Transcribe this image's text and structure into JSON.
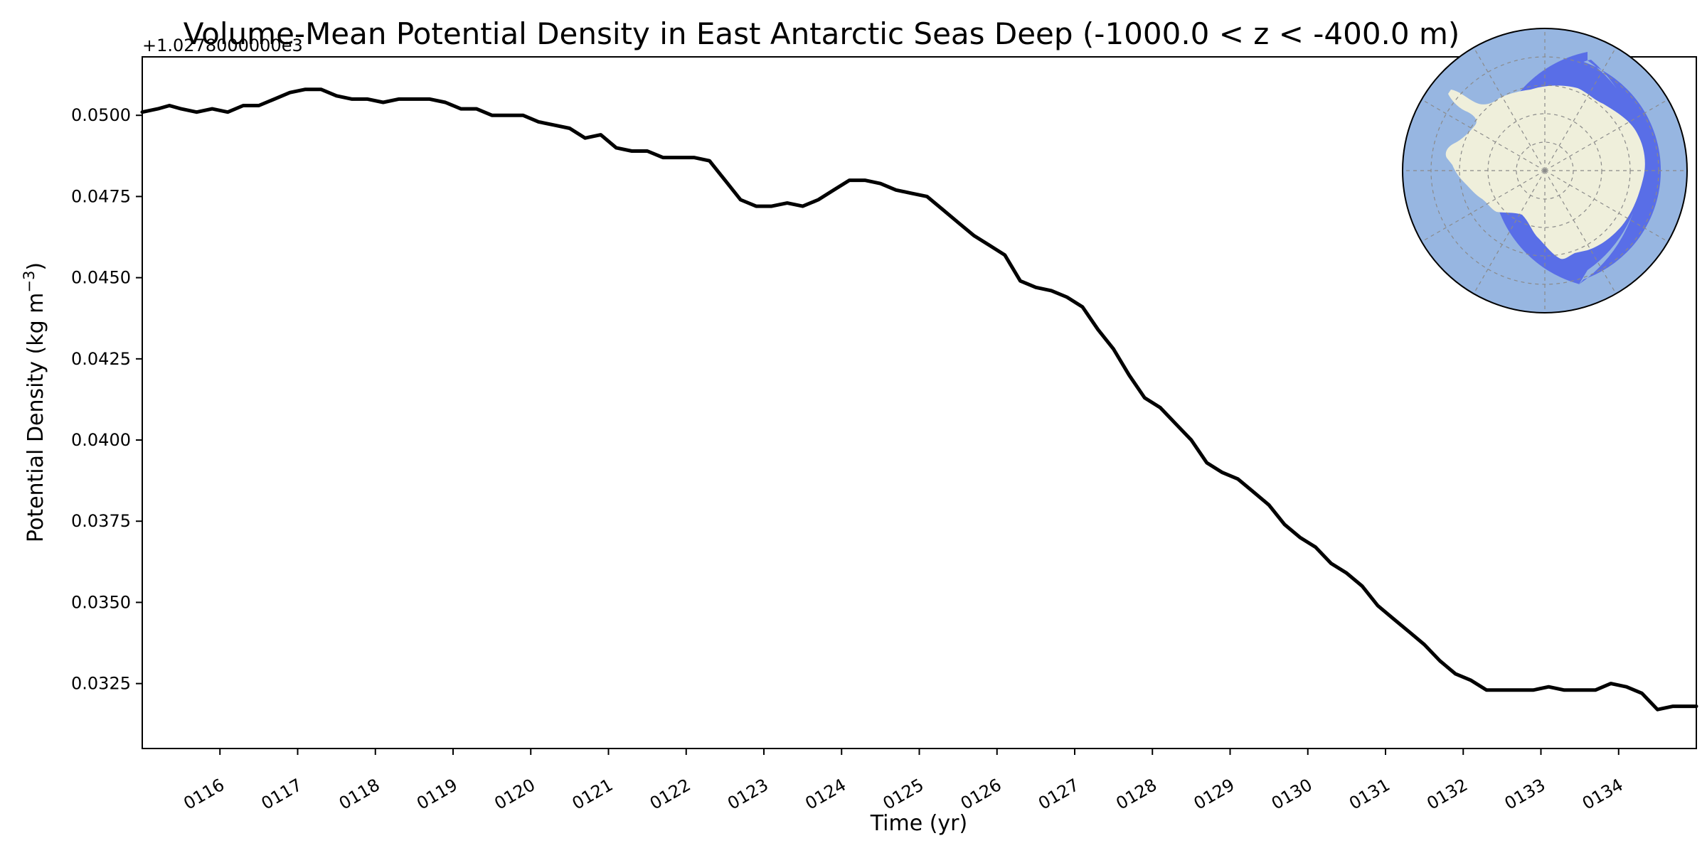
{
  "chart_data": {
    "type": "line",
    "title": "Volume-Mean Potential Density in East Antarctic Seas Deep (-1000.0 < z < -400.0 m)",
    "xlabel": "Time (yr)",
    "ylabel_main": "Potential Density (kg m",
    "ylabel_sup": "−3",
    "ylabel_close": ")",
    "y_offset_label": "+1.0278000000e3",
    "xlim": [
      115.0,
      135.0
    ],
    "ylim": [
      0.0305,
      0.0518
    ],
    "x_ticks": [
      {
        "value": 116,
        "label": "0116"
      },
      {
        "value": 117,
        "label": "0117"
      },
      {
        "value": 118,
        "label": "0118"
      },
      {
        "value": 119,
        "label": "0119"
      },
      {
        "value": 120,
        "label": "0120"
      },
      {
        "value": 121,
        "label": "0121"
      },
      {
        "value": 122,
        "label": "0122"
      },
      {
        "value": 123,
        "label": "0123"
      },
      {
        "value": 124,
        "label": "0124"
      },
      {
        "value": 125,
        "label": "0125"
      },
      {
        "value": 126,
        "label": "0126"
      },
      {
        "value": 127,
        "label": "0127"
      },
      {
        "value": 128,
        "label": "0128"
      },
      {
        "value": 129,
        "label": "0129"
      },
      {
        "value": 130,
        "label": "0130"
      },
      {
        "value": 131,
        "label": "0131"
      },
      {
        "value": 132,
        "label": "0132"
      },
      {
        "value": 133,
        "label": "0133"
      },
      {
        "value": 134,
        "label": "0134"
      }
    ],
    "y_ticks": [
      {
        "value": 0.0325,
        "label": "0.0325"
      },
      {
        "value": 0.035,
        "label": "0.0350"
      },
      {
        "value": 0.0375,
        "label": "0.0375"
      },
      {
        "value": 0.04,
        "label": "0.0400"
      },
      {
        "value": 0.0425,
        "label": "0.0425"
      },
      {
        "value": 0.045,
        "label": "0.0450"
      },
      {
        "value": 0.0475,
        "label": "0.0475"
      },
      {
        "value": 0.05,
        "label": "0.0500"
      }
    ],
    "series": [
      {
        "name": "East Antarctic Seas Deep",
        "color": "#000000",
        "x": [
          115.0,
          115.2,
          115.35,
          115.5,
          115.7,
          115.9,
          116.1,
          116.3,
          116.5,
          116.7,
          116.9,
          117.1,
          117.3,
          117.5,
          117.7,
          117.9,
          118.1,
          118.3,
          118.5,
          118.7,
          118.9,
          119.1,
          119.3,
          119.5,
          119.7,
          119.9,
          120.1,
          120.3,
          120.5,
          120.7,
          120.9,
          121.1,
          121.3,
          121.5,
          121.7,
          121.9,
          122.1,
          122.3,
          122.5,
          122.7,
          122.9,
          123.1,
          123.3,
          123.5,
          123.7,
          123.9,
          124.1,
          124.3,
          124.5,
          124.7,
          124.9,
          125.1,
          125.3,
          125.5,
          125.7,
          125.9,
          126.1,
          126.3,
          126.5,
          126.7,
          126.9,
          127.1,
          127.3,
          127.5,
          127.7,
          127.9,
          128.1,
          128.3,
          128.5,
          128.7,
          128.9,
          129.1,
          129.3,
          129.5,
          129.7,
          129.9,
          130.1,
          130.3,
          130.5,
          130.7,
          130.9,
          131.1,
          131.3,
          131.5,
          131.7,
          131.9,
          132.1,
          132.3,
          132.5,
          132.7,
          132.9,
          133.1,
          133.3,
          133.5,
          133.7,
          133.9,
          134.1,
          134.3,
          134.5,
          134.7,
          134.9,
          135.0
        ],
        "values": [
          0.0501,
          0.0502,
          0.0503,
          0.0502,
          0.0501,
          0.0502,
          0.0501,
          0.0503,
          0.0503,
          0.0505,
          0.0507,
          0.0508,
          0.0508,
          0.0506,
          0.0505,
          0.0505,
          0.0504,
          0.0505,
          0.0505,
          0.0505,
          0.0504,
          0.0502,
          0.0502,
          0.05,
          0.05,
          0.05,
          0.0498,
          0.0497,
          0.0496,
          0.0493,
          0.0494,
          0.049,
          0.0489,
          0.0489,
          0.0487,
          0.0487,
          0.0487,
          0.0486,
          0.048,
          0.0474,
          0.0472,
          0.0472,
          0.0473,
          0.0472,
          0.0474,
          0.0477,
          0.048,
          0.048,
          0.0479,
          0.0477,
          0.0476,
          0.0475,
          0.0471,
          0.0467,
          0.0463,
          0.046,
          0.0457,
          0.0449,
          0.0447,
          0.0446,
          0.0444,
          0.0441,
          0.0434,
          0.0428,
          0.042,
          0.0413,
          0.041,
          0.0405,
          0.04,
          0.0393,
          0.039,
          0.0388,
          0.0384,
          0.038,
          0.0374,
          0.037,
          0.0367,
          0.0362,
          0.0359,
          0.0355,
          0.0349,
          0.0345,
          0.0341,
          0.0337,
          0.0332,
          0.0328,
          0.0326,
          0.0323,
          0.0323,
          0.0323,
          0.0323,
          0.0324,
          0.0323,
          0.0323,
          0.0323,
          0.0325,
          0.0324,
          0.0322,
          0.0317,
          0.0318,
          0.0318,
          0.0318
        ]
      }
    ]
  },
  "inset_map": {
    "projection": "south-polar-stereographic",
    "ocean_color": "#97b6e1",
    "land_color": "#efefdb",
    "region_color": "#4d62e8",
    "region_name": "East Antarctic Seas"
  }
}
